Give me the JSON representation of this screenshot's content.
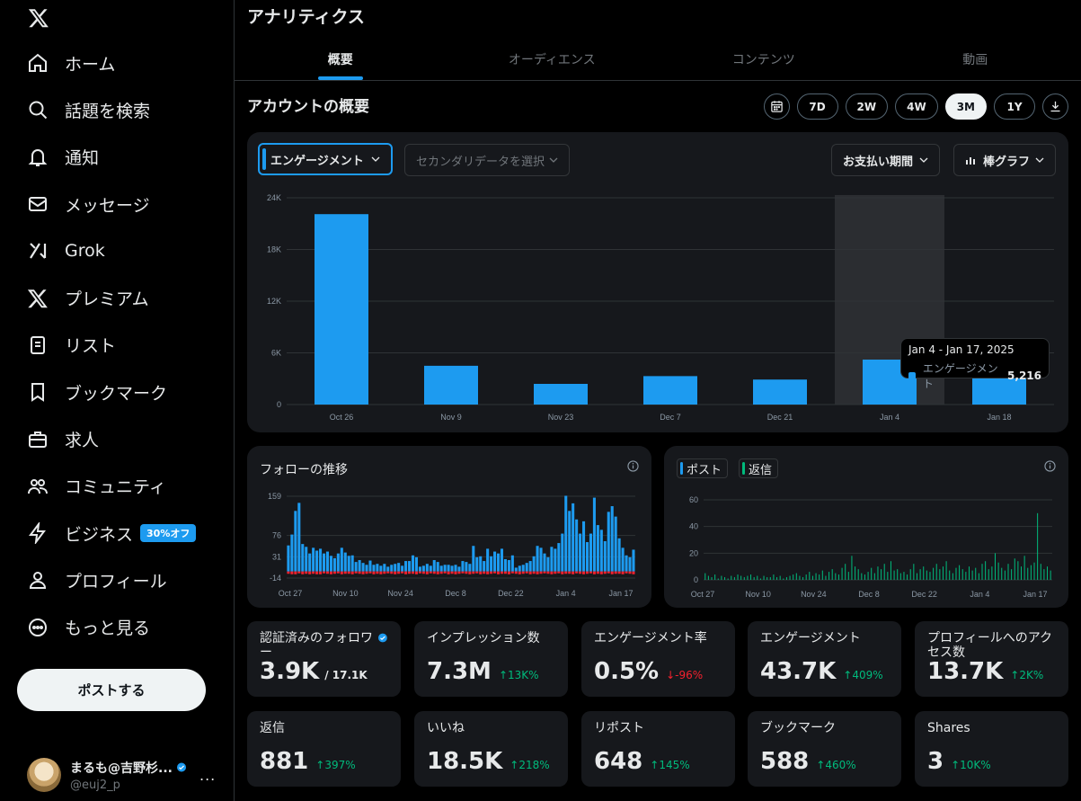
{
  "sidebar": {
    "items": [
      {
        "label": "ホーム",
        "icon": "home-icon"
      },
      {
        "label": "話題を検索",
        "icon": "search-icon"
      },
      {
        "label": "通知",
        "icon": "bell-icon"
      },
      {
        "label": "メッセージ",
        "icon": "envelope-icon"
      },
      {
        "label": "Grok",
        "icon": "grok-icon"
      },
      {
        "label": "プレミアム",
        "icon": "x-premium-icon"
      },
      {
        "label": "リスト",
        "icon": "list-icon"
      },
      {
        "label": "ブックマーク",
        "icon": "bookmark-icon"
      },
      {
        "label": "求人",
        "icon": "briefcase-icon"
      },
      {
        "label": "コミュニティ",
        "icon": "people-icon"
      },
      {
        "label": "ビジネス",
        "icon": "lightning-icon",
        "badge": "30%オフ"
      },
      {
        "label": "プロフィール",
        "icon": "person-icon"
      },
      {
        "label": "もっと見る",
        "icon": "more-circle-icon"
      }
    ],
    "post_button": "ポストする",
    "profile": {
      "name": "まるも@吉野杉...",
      "handle": "@euj2_p",
      "more": "..."
    }
  },
  "header": {
    "title": "アナリティクス",
    "tabs": [
      "概要",
      "オーディエンス",
      "コンテンツ",
      "動画"
    ]
  },
  "overview": {
    "title": "アカウントの概要",
    "ranges": [
      "7D",
      "2W",
      "4W",
      "3M",
      "1Y"
    ],
    "active_range": "3M"
  },
  "controls": {
    "primary": "エンゲージメント",
    "secondary_placeholder": "セカンダリデータを選択",
    "period": "お支払い期間",
    "chart_type": "棒グラフ"
  },
  "tooltip": {
    "range": "Jan 4 - Jan 17, 2025",
    "series": "エンゲージメント",
    "value": "5,216"
  },
  "chart_data": [
    {
      "type": "bar",
      "title": "",
      "categories": [
        "Oct 26",
        "Nov 9",
        "Nov 23",
        "Dec 7",
        "Dec 21",
        "Jan 4",
        "Jan 18"
      ],
      "values": [
        22100,
        4500,
        2400,
        3300,
        2900,
        5216,
        3500
      ],
      "yticks": [
        "0",
        "6K",
        "12K",
        "18K",
        "24K"
      ],
      "ylim": [
        0,
        24000
      ],
      "highlighted_category": "Jan 4",
      "color": "#1d9bf0"
    },
    {
      "type": "bar",
      "title": "フォローの推移",
      "xticks": [
        "Oct 27",
        "Nov 10",
        "Nov 24",
        "Dec 8",
        "Dec 22",
        "Jan 4",
        "Jan 17"
      ],
      "yticks": [
        "-14",
        "31",
        "76",
        "159"
      ],
      "ylim": [
        -14,
        159
      ],
      "series": [
        {
          "values": [
            55,
            78,
            128,
            145,
            58,
            52,
            38,
            50,
            44,
            48,
            38,
            42,
            33,
            28,
            38,
            50,
            40,
            33,
            34,
            20,
            24,
            18,
            14,
            23,
            14,
            16,
            12,
            16,
            10,
            14,
            16,
            18,
            12,
            22,
            22,
            34,
            30,
            10,
            12,
            16,
            12,
            24,
            20,
            12,
            14,
            14,
            12,
            14,
            10,
            22,
            20,
            16,
            54,
            30,
            32,
            22,
            48,
            32,
            42,
            38,
            48,
            26,
            24,
            34,
            8,
            12,
            14,
            18,
            22,
            32,
            54,
            50,
            38,
            30,
            52,
            48,
            60,
            80,
            160,
            128,
            144,
            110,
            80,
            106,
            62,
            80,
            156,
            98,
            88,
            64,
            126,
            138,
            116,
            70,
            50,
            34,
            30,
            46
          ]
        },
        {
          "values": [
            -5,
            -6,
            -6,
            -4,
            -6,
            -5,
            -6,
            -5,
            -6,
            -6,
            -4,
            -5,
            -6,
            -5,
            -4,
            -6,
            -5,
            -5,
            -6,
            -4,
            -5,
            -6,
            -5,
            -4,
            -6,
            -5,
            -6,
            -5,
            -4,
            -5,
            -6,
            -5,
            -4,
            -6,
            -5,
            -5,
            -6,
            -4,
            -5,
            -6,
            -4,
            -5,
            -6,
            -5,
            -4,
            -6,
            -5,
            -6,
            -5,
            -4,
            -5,
            -6,
            -5,
            -4,
            -6,
            -5,
            -6,
            -5,
            -4,
            -6,
            -5,
            -5,
            -6,
            -4,
            -5,
            -6,
            -5,
            -4,
            -6,
            -5,
            -6,
            -5,
            -4,
            -5,
            -6,
            -5,
            -4,
            -6,
            -5,
            -5,
            -6,
            -4,
            -5,
            -6,
            -5,
            -4,
            -6,
            -5,
            -6,
            -5,
            -4,
            -6,
            -5,
            -5,
            -6,
            -4,
            -5,
            -6
          ]
        }
      ]
    },
    {
      "type": "bar",
      "title": "",
      "xticks": [
        "Oct 27",
        "Nov 10",
        "Nov 24",
        "Dec 8",
        "Dec 22",
        "Jan 4",
        "Jan 17"
      ],
      "yticks": [
        "0",
        "20",
        "40",
        "60"
      ],
      "ylim": [
        0,
        60
      ],
      "series": [
        {
          "name": "ポスト",
          "values": [
            0,
            0,
            0,
            0,
            0,
            0,
            0,
            0,
            0,
            0,
            0,
            0,
            0,
            0,
            0,
            0,
            0,
            0,
            0,
            0,
            0,
            0,
            0,
            0,
            0,
            0,
            0,
            0,
            0,
            0,
            0,
            0,
            0,
            0,
            0,
            0,
            0,
            0,
            0,
            0,
            0,
            0,
            0,
            0,
            0,
            0,
            0,
            0,
            0,
            0,
            0,
            0,
            0,
            0,
            0,
            0,
            0,
            0,
            0,
            0,
            0,
            0,
            0,
            0,
            0,
            0,
            0,
            0,
            0,
            0,
            0,
            0,
            0,
            0,
            0,
            0,
            0,
            0,
            0,
            0,
            0,
            0,
            0,
            0,
            0,
            0,
            0,
            0,
            0,
            0,
            0,
            0,
            0,
            0,
            0,
            0,
            0,
            0,
            0,
            0,
            0,
            0,
            0,
            0,
            0,
            0,
            0
          ]
        },
        {
          "name": "返信",
          "values": [
            5,
            3,
            2,
            4,
            1,
            3,
            2,
            1,
            3,
            2,
            4,
            3,
            2,
            3,
            4,
            2,
            3,
            1,
            3,
            2,
            2,
            4,
            2,
            3,
            1,
            2,
            3,
            4,
            5,
            3,
            2,
            4,
            6,
            3,
            5,
            4,
            7,
            3,
            6,
            8,
            5,
            4,
            9,
            12,
            6,
            18,
            10,
            8,
            5,
            4,
            6,
            9,
            5,
            10,
            8,
            12,
            6,
            14,
            7,
            8,
            5,
            6,
            4,
            8,
            12,
            5,
            8,
            10,
            7,
            6,
            9,
            12,
            8,
            10,
            14,
            7,
            5,
            9,
            11,
            8,
            6,
            10,
            7,
            9,
            5,
            12,
            14,
            8,
            10,
            20,
            13,
            9,
            7,
            12,
            8,
            16,
            14,
            10,
            18,
            9,
            11,
            13,
            50,
            12,
            8,
            10,
            7
          ]
        }
      ]
    }
  ],
  "follow_card": {
    "title": "フォローの推移"
  },
  "reply_card": {
    "legend": [
      "ポスト",
      "返信"
    ]
  },
  "stats": [
    {
      "label": "認証済みのフォロワー",
      "value": "3.9K",
      "total": "/ 17.1K",
      "verified": true
    },
    {
      "label": "インプレッション数",
      "value": "7.3M",
      "delta": "13K%",
      "dir": "up"
    },
    {
      "label": "エンゲージメント率",
      "value": "0.5%",
      "delta": "-96%",
      "dir": "down"
    },
    {
      "label": "エンゲージメント",
      "value": "43.7K",
      "delta": "409%",
      "dir": "up"
    },
    {
      "label": "プロフィールへのアクセス数",
      "value": "13.7K",
      "delta": "2K%",
      "dir": "up"
    },
    {
      "label": "返信",
      "value": "881",
      "delta": "397%",
      "dir": "up"
    },
    {
      "label": "いいね",
      "value": "18.5K",
      "delta": "218%",
      "dir": "up"
    },
    {
      "label": "リポスト",
      "value": "648",
      "delta": "145%",
      "dir": "up"
    },
    {
      "label": "ブックマーク",
      "value": "588",
      "delta": "460%",
      "dir": "up"
    },
    {
      "label": "Shares",
      "value": "3",
      "delta": "10K%",
      "dir": "up"
    }
  ],
  "colors": {
    "accent": "#1d9bf0",
    "positive": "#00ba7c",
    "negative": "#f4212e",
    "card": "#16181c"
  }
}
